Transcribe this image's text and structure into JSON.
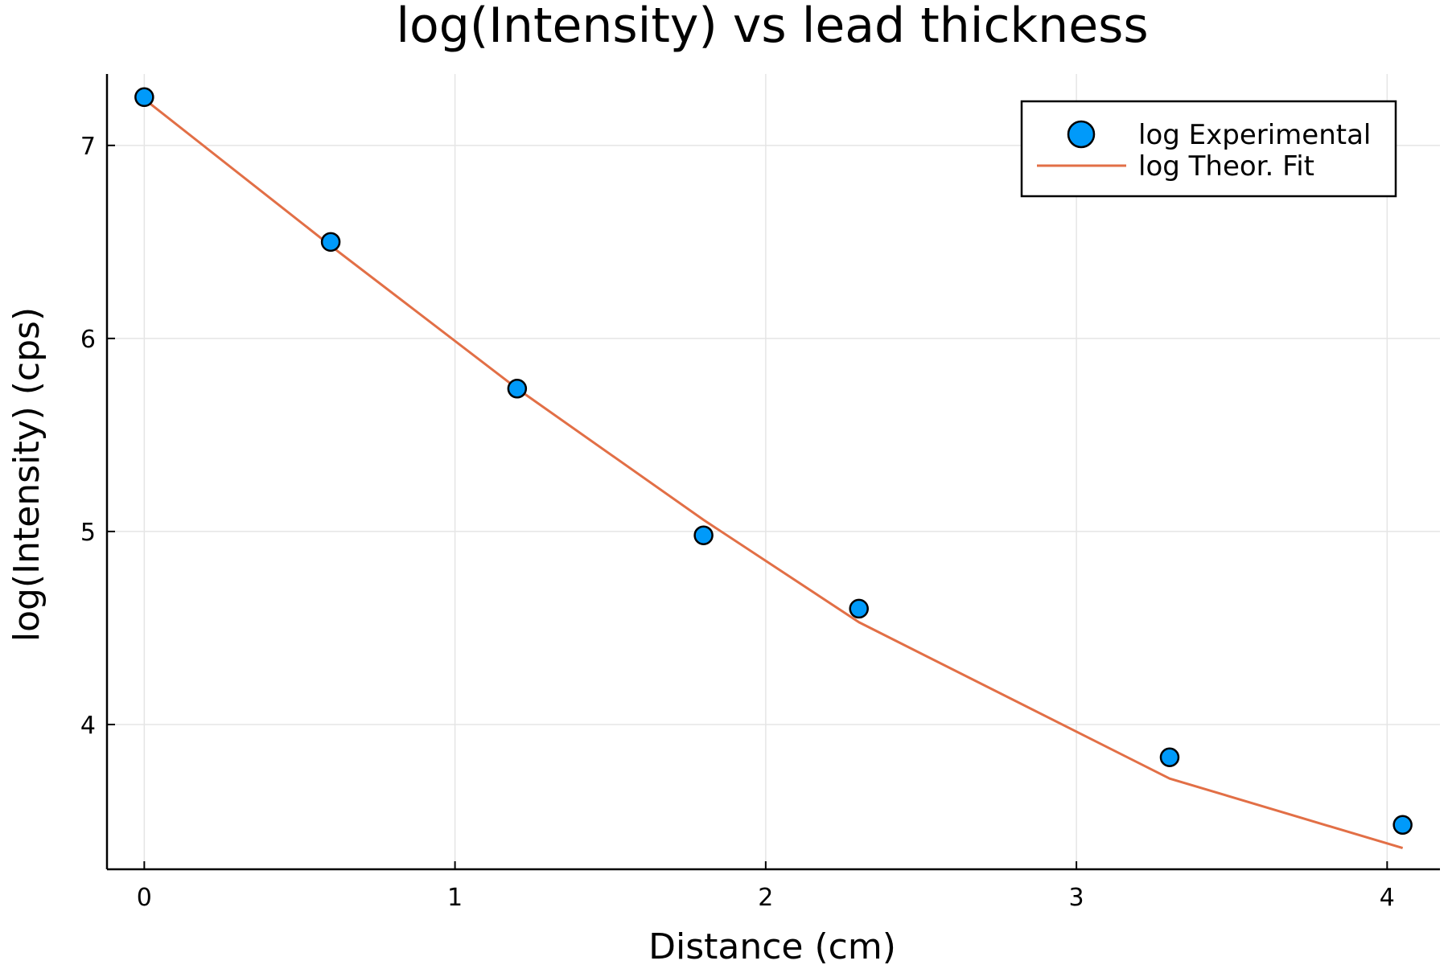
{
  "chart_data": {
    "type": "scatter",
    "title": "log(Intensity) vs lead thickness",
    "xlabel": "Distance (cm)",
    "ylabel": "log(Intensity) (cps)",
    "xlim": [
      -0.12,
      4.17
    ],
    "ylim": [
      3.25,
      7.37
    ],
    "xticks": [
      0,
      1,
      2,
      3,
      4
    ],
    "xtick_labels": [
      "0",
      "1",
      "2",
      "3",
      "4"
    ],
    "yticks": [
      4,
      5,
      6,
      7
    ],
    "ytick_labels": [
      "4",
      "5",
      "6",
      "7"
    ],
    "grid": true,
    "legend_position": "top-right",
    "series": [
      {
        "name": "log Experimental",
        "kind": "scatter",
        "color": "#009AFA",
        "x": [
          0,
          0.6,
          1.2,
          1.8,
          2.3,
          3.3,
          4.05
        ],
        "y": [
          7.25,
          6.5,
          5.74,
          4.98,
          4.6,
          3.83,
          3.48
        ]
      },
      {
        "name": "log Theor. Fit",
        "kind": "line",
        "color": "#E26F46",
        "x": [
          0,
          0.6,
          1.2,
          1.8,
          2.3,
          3.3,
          4.05
        ],
        "y": [
          7.24,
          6.48,
          5.74,
          5.06,
          4.53,
          3.72,
          3.36
        ]
      }
    ]
  }
}
